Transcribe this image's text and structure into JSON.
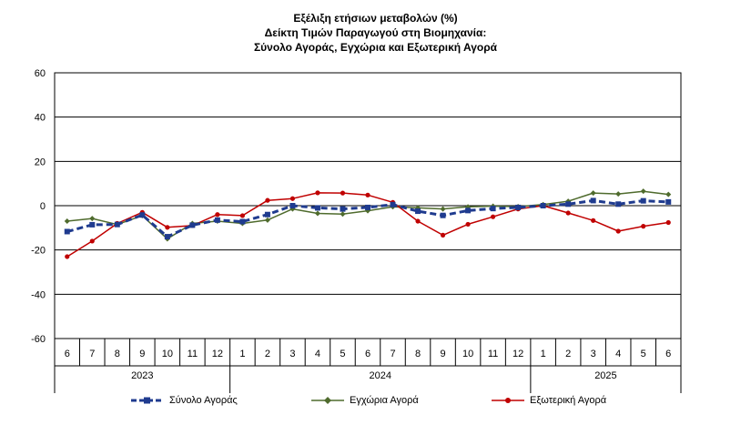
{
  "chart_data": {
    "type": "line",
    "title": "Εξέλιξη ετήσιων μεταβολών (%)",
    "subtitle_line2": "Δείκτη Τιμών Παραγωγού στη Βιομηχανία:",
    "subtitle_line3": "Σύνολο Αγοράς, Εγχώρια και Εξωτερική Αγορά",
    "ylim": [
      -60,
      60
    ],
    "yticks": [
      -60,
      -40,
      -20,
      0,
      20,
      40,
      60
    ],
    "categories": [
      "6",
      "7",
      "8",
      "9",
      "10",
      "11",
      "12",
      "1",
      "2",
      "3",
      "4",
      "5",
      "6",
      "7",
      "8",
      "9",
      "10",
      "11",
      "12",
      "1",
      "2",
      "3",
      "4",
      "5",
      "6"
    ],
    "years": [
      {
        "label": "2023",
        "start": 0,
        "end": 6
      },
      {
        "label": "2024",
        "start": 7,
        "end": 18
      },
      {
        "label": "2025",
        "start": 19,
        "end": 24
      }
    ],
    "grid": true,
    "legend_position": "bottom",
    "series": [
      {
        "name": "Σύνολο Αγοράς",
        "color": "#1f3b8f",
        "style": "dashed-square",
        "values": [
          -11.7,
          -8.6,
          -8.5,
          -4.2,
          -14.0,
          -8.8,
          -6.5,
          -7.2,
          -4.0,
          0.0,
          -1.0,
          -1.5,
          -0.8,
          0.5,
          -2.5,
          -4.4,
          -2.2,
          -1.3,
          -0.8,
          0.0,
          0.7,
          2.3,
          0.7,
          2.2,
          1.7
        ]
      },
      {
        "name": "Εγχώρια Αγορά",
        "color": "#4f6b2d",
        "style": "solid-diamond",
        "values": [
          -7.0,
          -5.8,
          -8.5,
          -4.5,
          -15.0,
          -8.0,
          -7.0,
          -8.0,
          -6.5,
          -1.5,
          -3.5,
          -3.8,
          -2.3,
          -0.5,
          -1.0,
          -1.5,
          -0.5,
          -0.2,
          -0.4,
          0.5,
          2.0,
          5.7,
          5.3,
          6.5,
          5.1
        ]
      },
      {
        "name": "Εξωτερική Αγορά",
        "color": "#c00000",
        "style": "solid-circle",
        "values": [
          -23.0,
          -16.0,
          -8.0,
          -3.0,
          -9.8,
          -9.0,
          -4.0,
          -4.5,
          2.4,
          3.2,
          5.8,
          5.7,
          4.8,
          1.5,
          -7.0,
          -13.3,
          -8.4,
          -5.0,
          -1.5,
          0.0,
          -3.3,
          -6.7,
          -11.5,
          -9.3,
          -7.6
        ]
      }
    ]
  }
}
